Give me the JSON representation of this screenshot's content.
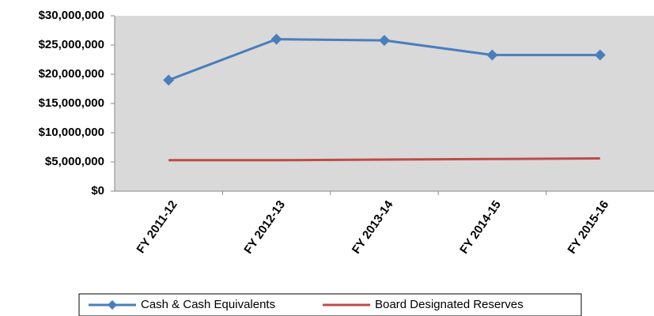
{
  "chart_data": {
    "type": "line",
    "categories": [
      "FY 2011-12",
      "FY 2012-13",
      "FY 2013-14",
      "FY 2014-15",
      "FY 2015-16"
    ],
    "series": [
      {
        "name": "Cash & Cash Equivalents",
        "color": "#4a7ebb",
        "marker": "diamond",
        "values": [
          19000000,
          26000000,
          25800000,
          23300000,
          23300000
        ]
      },
      {
        "name": "Board Designated Reserves",
        "color": "#be4b48",
        "values": [
          5300000,
          5300000,
          5400000,
          5500000,
          5600000
        ]
      }
    ],
    "ylim": [
      0,
      30000000
    ],
    "yticks": [
      {
        "value": 0,
        "label": "$0"
      },
      {
        "value": 5000000,
        "label": "$5,000,000"
      },
      {
        "value": 10000000,
        "label": "$10,000,000"
      },
      {
        "value": 15000000,
        "label": "$15,000,000"
      },
      {
        "value": 20000000,
        "label": "$20,000,000"
      },
      {
        "value": 25000000,
        "label": "$25,000,000"
      },
      {
        "value": 30000000,
        "label": "$30,000,000"
      }
    ],
    "legend": "bottom"
  }
}
